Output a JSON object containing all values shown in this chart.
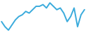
{
  "x": [
    0,
    1,
    2,
    3,
    4,
    5,
    6,
    7,
    8,
    9,
    10,
    11,
    12,
    13,
    14,
    15,
    16,
    17,
    18,
    19,
    20,
    21,
    22,
    23,
    24
  ],
  "y": [
    5,
    2,
    0,
    3,
    6,
    8,
    9,
    11,
    10,
    12,
    14,
    14,
    15,
    13,
    16,
    14,
    12,
    13,
    10,
    5,
    8,
    13,
    2,
    9,
    12
  ],
  "line_color": "#3aabdc",
  "line_width": 1.4,
  "background_color": "#ffffff"
}
